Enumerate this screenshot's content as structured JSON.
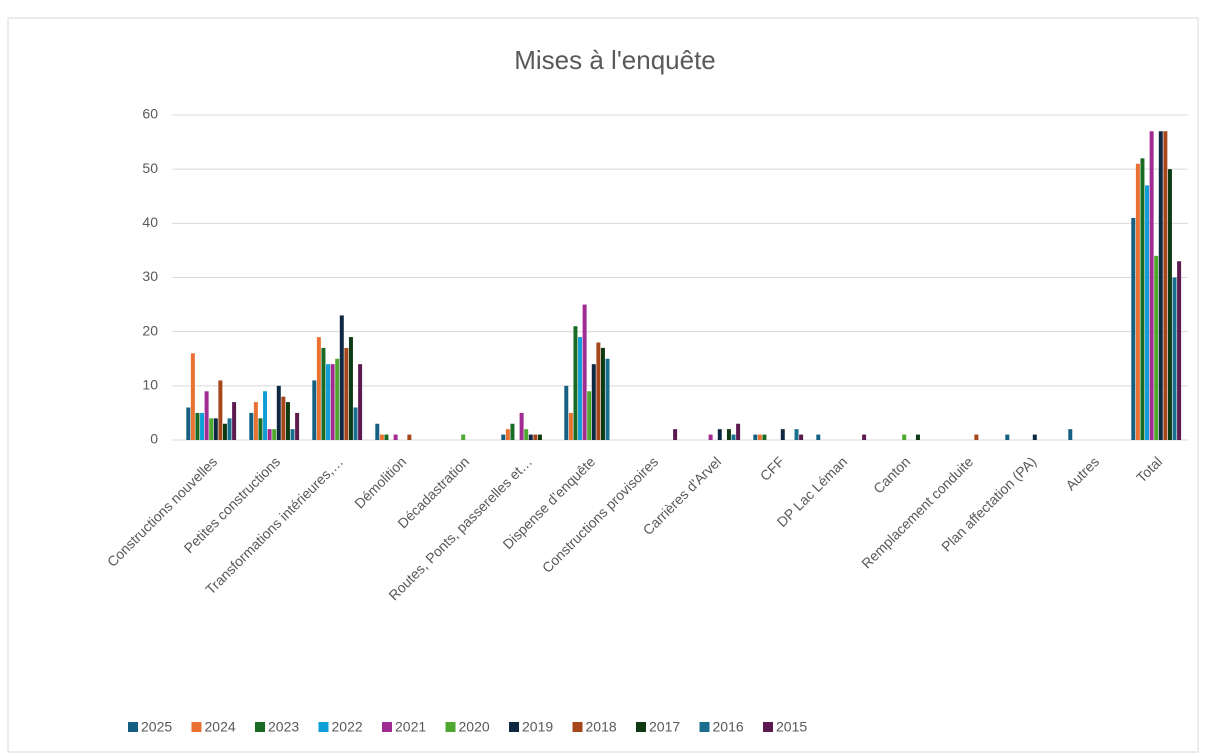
{
  "chart_data": {
    "type": "bar",
    "title": "Mises à l'enquête",
    "categories": [
      "Constructions nouvelles",
      "Petites constructions",
      "Transformations intérieures,…",
      "Démolition",
      "Décadastration",
      "Routes, Ponts, passerelles et…",
      "Dispense d’enquête",
      "Constructions provisoires",
      "Carrières d'Arvel",
      "CFF",
      "DP Lac Léman",
      "Canton",
      "Remplacement conduite",
      "Plan affectation (PA)",
      "Autres",
      "Total"
    ],
    "series": [
      {
        "name": "2025",
        "color": "#156082",
        "values": [
          6,
          5,
          11,
          3,
          0,
          1,
          10,
          0,
          0,
          1,
          1,
          0,
          0,
          1,
          2,
          41
        ]
      },
      {
        "name": "2024",
        "color": "#e97132",
        "values": [
          16,
          7,
          19,
          1,
          0,
          2,
          5,
          0,
          0,
          1,
          0,
          0,
          0,
          0,
          0,
          51
        ]
      },
      {
        "name": "2023",
        "color": "#196b24",
        "values": [
          5,
          4,
          17,
          1,
          0,
          3,
          21,
          0,
          0,
          1,
          0,
          0,
          0,
          0,
          0,
          52
        ]
      },
      {
        "name": "2022",
        "color": "#0f9ed5",
        "values": [
          5,
          9,
          14,
          0,
          0,
          0,
          19,
          0,
          0,
          0,
          0,
          0,
          0,
          0,
          0,
          47
        ]
      },
      {
        "name": "2021",
        "color": "#a02b93",
        "values": [
          9,
          2,
          14,
          1,
          0,
          5,
          25,
          0,
          1,
          0,
          0,
          0,
          0,
          0,
          0,
          57
        ]
      },
      {
        "name": "2020",
        "color": "#4ea72e",
        "values": [
          4,
          2,
          15,
          0,
          1,
          2,
          9,
          0,
          0,
          0,
          0,
          1,
          0,
          0,
          0,
          34
        ]
      },
      {
        "name": "2019",
        "color": "#0e2841",
        "values": [
          4,
          10,
          23,
          0,
          0,
          1,
          14,
          0,
          2,
          2,
          0,
          0,
          0,
          1,
          0,
          57
        ]
      },
      {
        "name": "2018",
        "color": "#a5461b",
        "values": [
          11,
          8,
          17,
          1,
          0,
          1,
          18,
          0,
          0,
          0,
          0,
          0,
          1,
          0,
          0,
          57
        ]
      },
      {
        "name": "2017",
        "color": "#0d3a12",
        "values": [
          3,
          7,
          19,
          0,
          0,
          1,
          17,
          0,
          2,
          0,
          0,
          1,
          0,
          0,
          0,
          50
        ]
      },
      {
        "name": "2016",
        "color": "#1a6e8e",
        "values": [
          4,
          2,
          6,
          0,
          0,
          0,
          15,
          0,
          1,
          2,
          0,
          0,
          0,
          0,
          0,
          30
        ]
      },
      {
        "name": "2015",
        "color": "#5c1a4f",
        "values": [
          7,
          5,
          14,
          0,
          0,
          0,
          0,
          2,
          3,
          1,
          1,
          0,
          0,
          0,
          0,
          33
        ]
      }
    ],
    "ylim": [
      0,
      60
    ],
    "yticks": [
      0,
      10,
      20,
      30,
      40,
      50,
      60
    ],
    "grid": true,
    "legend": "bottom"
  }
}
